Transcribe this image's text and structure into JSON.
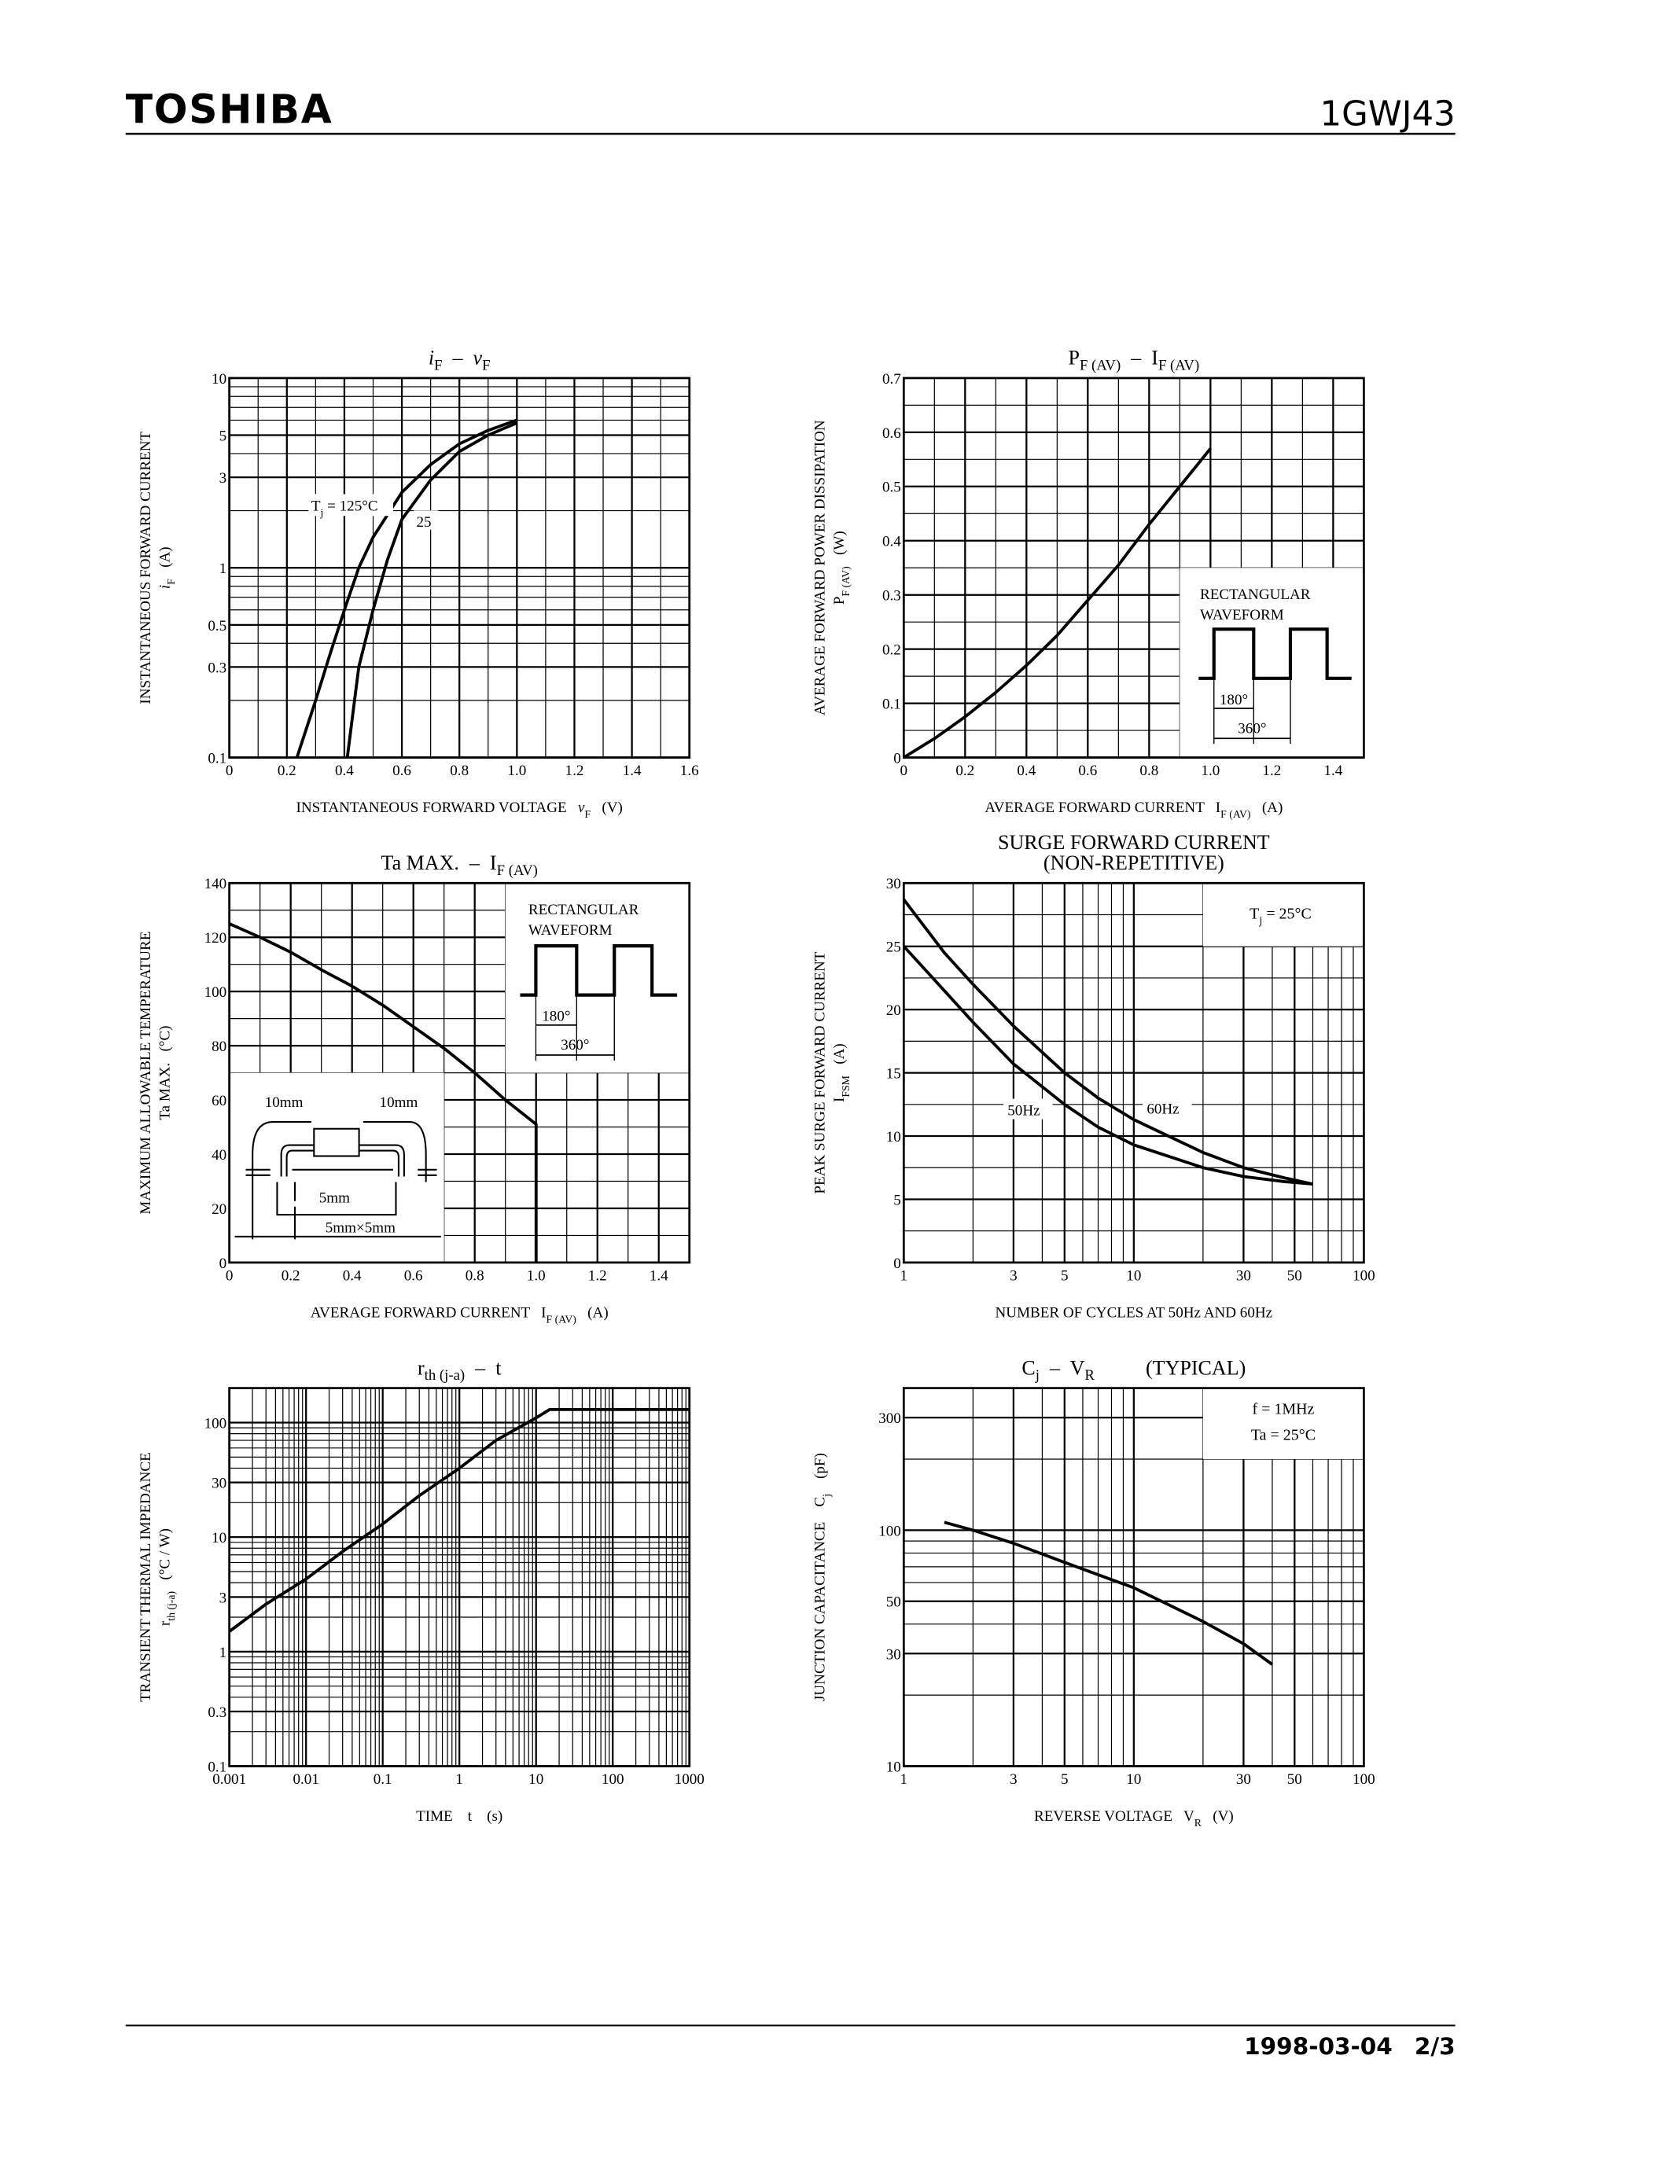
{
  "header": {
    "logo": "TOSHIBA",
    "part_number": "1GWJ43"
  },
  "footer": {
    "date": "1998-03-04",
    "page": "2/3"
  },
  "colors": {
    "ink": "#000000",
    "paper": "#ffffff"
  },
  "chart_data": [
    {
      "type": "line",
      "title": [
        [
          [
            "i",
            "i"
          ],
          [
            "F",
            "sub"
          ],
          [
            "  –  ",
            ""
          ],
          [
            "v",
            "i"
          ],
          [
            "F",
            "sub"
          ]
        ]
      ],
      "xlabel": [
        [
          "INSTANTANEOUS FORWARD VOLTAGE   ",
          ""
        ],
        [
          "v",
          "i"
        ],
        [
          "F",
          "sub"
        ],
        [
          "   (V)",
          ""
        ]
      ],
      "ylabel": [
        [
          [
            "INSTANTANEOUS FORWARD CURRENT",
            ""
          ]
        ],
        [
          [
            "i",
            "i"
          ],
          [
            "F",
            "sub"
          ],
          [
            "   (A)",
            ""
          ]
        ]
      ],
      "xscale": "linear",
      "yscale": "log",
      "xlim": [
        0,
        1.6
      ],
      "ylim": [
        0.1,
        10
      ],
      "x_grid_step": 0.1,
      "grid": true,
      "xticks": [
        0,
        0.2,
        0.4,
        0.6,
        0.8,
        1.0,
        1.2,
        1.4,
        1.6
      ],
      "xtick_labels": [
        "0",
        "0.2",
        "0.4",
        "0.6",
        "0.8",
        "1.0",
        "1.2",
        "1.4",
        "1.6"
      ],
      "yticks": [
        0.1,
        0.3,
        0.5,
        1,
        3,
        5,
        10
      ],
      "ytick_labels": [
        "0.1",
        "0.3",
        "0.5",
        "1",
        "3",
        "5",
        "10"
      ],
      "series": [
        {
          "name": "Tj = 125°C",
          "x": [
            0.235,
            0.3,
            0.35,
            0.4,
            0.45,
            0.5,
            0.6,
            0.7,
            0.8,
            0.9,
            1.0
          ],
          "y": [
            0.1,
            0.2,
            0.35,
            0.6,
            1.0,
            1.45,
            2.5,
            3.5,
            4.5,
            5.3,
            6.0
          ]
        },
        {
          "name": "25",
          "x": [
            0.41,
            0.45,
            0.5,
            0.55,
            0.6,
            0.7,
            0.8,
            0.9,
            1.0
          ],
          "y": [
            0.1,
            0.3,
            0.6,
            1.1,
            1.8,
            2.9,
            4.1,
            5.0,
            5.8
          ]
        }
      ],
      "annotations": [
        [
          [
            "T",
            ""
          ],
          [
            "j",
            "sub"
          ],
          [
            " = 125°C",
            ""
          ]
        ],
        [
          [
            "25",
            ""
          ]
        ]
      ]
    },
    {
      "type": "line",
      "title": [
        [
          [
            "P",
            ""
          ],
          [
            "F (AV)",
            "sub"
          ],
          [
            "  –  I",
            ""
          ],
          [
            "F (AV)",
            "sub"
          ]
        ]
      ],
      "xlabel": [
        [
          "AVERAGE FORWARD CURRENT   I",
          ""
        ],
        [
          "F (AV)",
          "sub"
        ],
        [
          "   (A)",
          ""
        ]
      ],
      "ylabel": [
        [
          [
            "AVERAGE FORWARD POWER DISSIPATION",
            ""
          ]
        ],
        [
          [
            "P",
            ""
          ],
          [
            "F (AV)",
            "sub"
          ],
          [
            "   (W)",
            ""
          ]
        ]
      ],
      "xscale": "linear",
      "yscale": "linear",
      "xlim": [
        0,
        1.5
      ],
      "ylim": [
        0,
        0.7
      ],
      "x_grid_step": 0.1,
      "y_grid_step": 0.05,
      "grid": true,
      "xticks": [
        0,
        0.2,
        0.4,
        0.6,
        0.8,
        1.0,
        1.2,
        1.4
      ],
      "xtick_labels": [
        "0",
        "0.2",
        "0.4",
        "0.6",
        "0.8",
        "1.0",
        "1.2",
        "1.4"
      ],
      "yticks": [
        0,
        0.1,
        0.2,
        0.3,
        0.4,
        0.5,
        0.6,
        0.7
      ],
      "ytick_labels": [
        "0",
        "0.1",
        "0.2",
        "0.3",
        "0.4",
        "0.5",
        "0.6",
        "0.7"
      ],
      "series": [
        {
          "x": [
            0,
            0.1,
            0.2,
            0.3,
            0.4,
            0.5,
            0.6,
            0.7,
            0.8,
            0.9,
            1.0
          ],
          "y": [
            0,
            0.035,
            0.075,
            0.12,
            0.17,
            0.225,
            0.29,
            0.355,
            0.43,
            0.5,
            0.57
          ]
        }
      ],
      "inset": {
        "label": [
          "RECTANGULAR",
          "WAVEFORM"
        ],
        "angles": [
          "180°",
          "360°"
        ]
      }
    },
    {
      "type": "line",
      "title": [
        [
          [
            "Ta MAX.  –  I",
            ""
          ],
          [
            "F (AV)",
            "sub"
          ]
        ]
      ],
      "xlabel": [
        [
          "AVERAGE FORWARD CURRENT   I",
          ""
        ],
        [
          "F (AV)",
          "sub"
        ],
        [
          "   (A)",
          ""
        ]
      ],
      "ylabel": [
        [
          [
            "MAXIMUM ALLOWABLE TEMPERATURE",
            ""
          ]
        ],
        [
          [
            "Ta MAX.   (°C)",
            ""
          ]
        ]
      ],
      "xscale": "linear",
      "yscale": "linear",
      "xlim": [
        0,
        1.5
      ],
      "ylim": [
        0,
        140
      ],
      "x_grid_step": 0.1,
      "y_grid_step": 10,
      "grid": true,
      "xticks": [
        0,
        0.2,
        0.4,
        0.6,
        0.8,
        1.0,
        1.2,
        1.4
      ],
      "xtick_labels": [
        "0",
        "0.2",
        "0.4",
        "0.6",
        "0.8",
        "1.0",
        "1.2",
        "1.4"
      ],
      "yticks": [
        0,
        20,
        40,
        60,
        80,
        100,
        120,
        140
      ],
      "ytick_labels": [
        "0",
        "20",
        "40",
        "60",
        "80",
        "100",
        "120",
        "140"
      ],
      "series": [
        {
          "x": [
            0,
            0.1,
            0.2,
            0.3,
            0.4,
            0.5,
            0.6,
            0.7,
            0.8,
            0.9,
            1.0,
            1.0
          ],
          "y": [
            125,
            120,
            114.5,
            108,
            102,
            95,
            87,
            79,
            70,
            60,
            51,
            0
          ]
        }
      ],
      "inset": {
        "label": [
          "RECTANGULAR",
          "WAVEFORM"
        ],
        "angles": [
          "180°",
          "360°"
        ]
      },
      "mounting": {
        "labels": [
          "10mm",
          "10mm",
          "5mm",
          "5mm×5mm"
        ]
      }
    },
    {
      "type": "line",
      "title": [
        [
          [
            "SURGE FORWARD CURRENT",
            ""
          ]
        ],
        [
          [
            "(NON-REPETITIVE)",
            ""
          ]
        ]
      ],
      "xlabel": [
        [
          "NUMBER OF CYCLES AT 50Hz AND 60Hz",
          ""
        ]
      ],
      "ylabel": [
        [
          [
            "PEAK SURGE FORWARD CURRENT",
            ""
          ]
        ],
        [
          [
            "I",
            ""
          ],
          [
            "FSM",
            "sub"
          ],
          [
            "   (A)",
            ""
          ]
        ]
      ],
      "xscale": "log",
      "yscale": "linear",
      "xlim": [
        1,
        100
      ],
      "ylim": [
        0,
        30
      ],
      "y_grid_step": 2.5,
      "grid": true,
      "xticks": [
        1,
        3,
        5,
        10,
        30,
        50,
        100
      ],
      "xtick_labels": [
        "1",
        "3",
        "5",
        "10",
        "30",
        "50",
        "100"
      ],
      "yticks": [
        0,
        5,
        10,
        15,
        20,
        25,
        30
      ],
      "ytick_labels": [
        "0",
        "5",
        "10",
        "15",
        "20",
        "25",
        "30"
      ],
      "series": [
        {
          "name": "50Hz",
          "x": [
            1,
            1.5,
            2,
            3,
            5,
            7,
            10,
            20,
            30,
            45,
            60
          ],
          "y": [
            25,
            21.5,
            19,
            15.7,
            12.5,
            10.7,
            9.3,
            7.5,
            6.8,
            6.4,
            6.2
          ]
        },
        {
          "name": "60Hz",
          "x": [
            1,
            1.5,
            2,
            3,
            5,
            7,
            10,
            20,
            30,
            45,
            60
          ],
          "y": [
            28.7,
            24.5,
            22,
            18.7,
            15,
            13,
            11.3,
            8.7,
            7.5,
            6.7,
            6.2
          ]
        }
      ],
      "annotations": [
        [
          [
            "50Hz",
            ""
          ]
        ],
        [
          [
            "60Hz",
            ""
          ]
        ]
      ],
      "inset_text": [
        [
          [
            "T",
            ""
          ],
          [
            "j",
            "sub"
          ],
          [
            " = 25°C",
            ""
          ]
        ]
      ]
    },
    {
      "type": "line",
      "title": [
        [
          [
            "r",
            ""
          ],
          [
            "th (j-a)",
            "sub"
          ],
          [
            "  –  t",
            ""
          ]
        ]
      ],
      "xlabel": [
        [
          "TIME    t    (s)",
          ""
        ]
      ],
      "ylabel": [
        [
          [
            "TRANSIENT THERMAL IMPEDANCE",
            ""
          ]
        ],
        [
          [
            "r",
            ""
          ],
          [
            "th (j-a)",
            "sub"
          ],
          [
            "   (°C / W)",
            ""
          ]
        ]
      ],
      "xscale": "log",
      "yscale": "log",
      "xlim": [
        0.001,
        1000
      ],
      "ylim": [
        0.1,
        200
      ],
      "grid": true,
      "xticks": [
        0.001,
        0.01,
        0.1,
        1,
        10,
        100,
        1000
      ],
      "xtick_labels": [
        "0.001",
        "0.01",
        "0.1",
        "1",
        "10",
        "100",
        "1000"
      ],
      "yticks": [
        0.1,
        0.3,
        1,
        3,
        10,
        30,
        100
      ],
      "ytick_labels": [
        "0.1",
        "0.3",
        "1",
        "3",
        "10",
        "30",
        "100"
      ],
      "series": [
        {
          "x": [
            0.001,
            0.003,
            0.01,
            0.03,
            0.1,
            0.3,
            1,
            3,
            10,
            15,
            1000
          ],
          "y": [
            1.5,
            2.6,
            4.3,
            7.5,
            13,
            23,
            40,
            70,
            110,
            130,
            130
          ]
        }
      ]
    },
    {
      "type": "line",
      "title": [
        [
          [
            "C",
            ""
          ],
          [
            "j",
            "sub"
          ],
          [
            "  –  V",
            ""
          ],
          [
            "R",
            "sub"
          ],
          [
            "          (TYPICAL)",
            ""
          ]
        ]
      ],
      "xlabel": [
        [
          "REVERSE VOLTAGE   V",
          ""
        ],
        [
          "R",
          "sub"
        ],
        [
          "   (V)",
          ""
        ]
      ],
      "ylabel": [
        [
          [
            "JUNCTION CAPACITANCE    C",
            ""
          ],
          [
            "j",
            "sub"
          ],
          [
            "    (pF)",
            ""
          ]
        ]
      ],
      "xscale": "log",
      "yscale": "log",
      "xlim": [
        1,
        100
      ],
      "ylim": [
        10,
        400
      ],
      "grid": true,
      "xticks": [
        1,
        3,
        5,
        10,
        30,
        50,
        100
      ],
      "xtick_labels": [
        "1",
        "3",
        "5",
        "10",
        "30",
        "50",
        "100"
      ],
      "yticks": [
        10,
        30,
        50,
        100,
        300
      ],
      "ytick_labels": [
        "10",
        "30",
        "50",
        "100",
        "300"
      ],
      "series": [
        {
          "x": [
            1.5,
            2,
            3,
            5,
            10,
            20,
            30,
            40
          ],
          "y": [
            108,
            100,
            88,
            73,
            57,
            41,
            33,
            27
          ]
        }
      ],
      "inset_text": [
        [
          [
            "f = 1MHz",
            ""
          ]
        ],
        [
          [
            "Ta = 25°C",
            ""
          ]
        ]
      ]
    }
  ]
}
